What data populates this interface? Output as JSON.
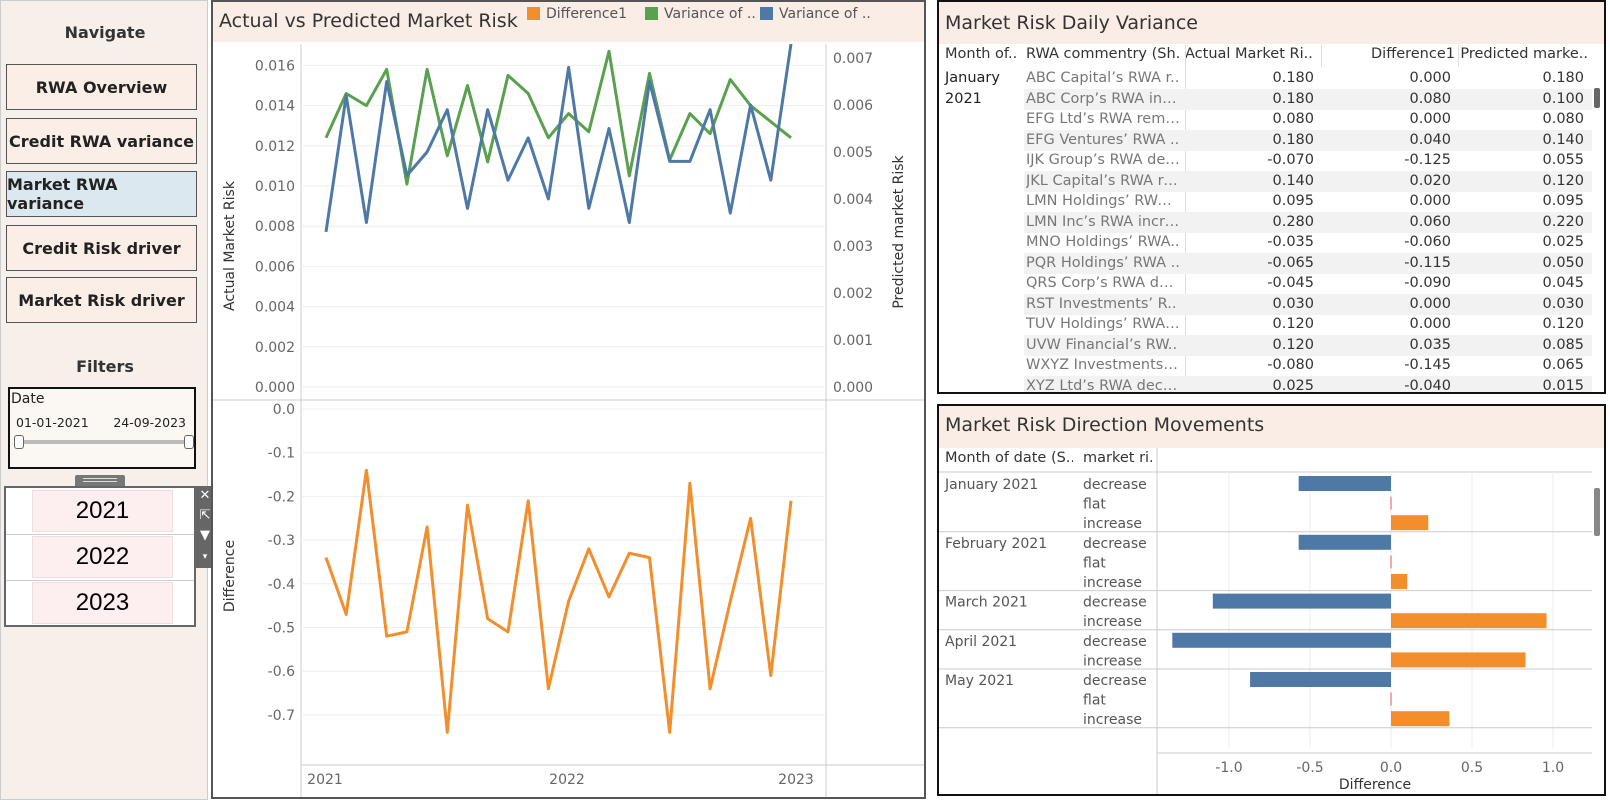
{
  "sidebar": {
    "navigate_label": "Navigate",
    "nav_items": [
      {
        "label": "RWA Overview",
        "active": false
      },
      {
        "label": "Credit RWA variance",
        "active": false
      },
      {
        "label": "Market RWA variance",
        "active": true
      },
      {
        "label": "Credit Risk driver",
        "active": false
      },
      {
        "label": "Market Risk driver",
        "active": false
      }
    ],
    "filters_label": "Filters",
    "date_filter": {
      "label": "Date",
      "start": "01-01-2021",
      "end": "24-09-2023"
    },
    "year_options": [
      "2021",
      "2022",
      "2023"
    ]
  },
  "line_panel": {
    "title": "Actual vs Predicted Market Risk",
    "legend": [
      {
        "label": "Difference1",
        "color": "#f28e2b"
      },
      {
        "label": "Variance of ..",
        "color": "#59a14f"
      },
      {
        "label": "Variance of ..",
        "color": "#4e79a7"
      }
    ],
    "top_left_axis_label": "Actual Market Risk",
    "top_right_axis_label": "Predicted market Risk",
    "bottom_axis_label": "Difference",
    "left_ticks": [
      "0.016",
      "0.014",
      "0.012",
      "0.010",
      "0.008",
      "0.006",
      "0.004",
      "0.002",
      "0.000"
    ],
    "right_ticks": [
      "0.007",
      "0.006",
      "0.005",
      "0.004",
      "0.003",
      "0.002",
      "0.001",
      "0.000"
    ],
    "bottom_ticks": [
      "0.0",
      "-0.1",
      "-0.2",
      "-0.3",
      "-0.4",
      "-0.5",
      "-0.6",
      "-0.7"
    ],
    "x_ticks": [
      "2021",
      "2022",
      "2023"
    ]
  },
  "chart_data": [
    {
      "type": "line",
      "x_label_ticks": [
        "2021",
        "2022",
        "2023"
      ],
      "series": [
        {
          "name": "Variance of ..",
          "color": "#59a14f",
          "axis": "left",
          "values": [
            0.0124,
            0.0146,
            0.014,
            0.0158,
            0.0101,
            0.0158,
            0.0115,
            0.015,
            0.0112,
            0.0155,
            0.0146,
            0.0124,
            0.0136,
            0.0127,
            0.0167,
            0.0105,
            0.0156,
            0.0113,
            0.0136,
            0.0126,
            0.0153,
            0.014,
            0.0132,
            0.0124
          ]
        },
        {
          "name": "Variance of ..",
          "color": "#4e79a7",
          "axis": "right",
          "values": [
            0.0033,
            0.0062,
            0.0035,
            0.0065,
            0.0045,
            0.005,
            0.0059,
            0.0038,
            0.0059,
            0.0044,
            0.0053,
            0.004,
            0.0068,
            0.0038,
            0.0055,
            0.0035,
            0.0065,
            0.0048,
            0.0048,
            0.0059,
            0.0037,
            0.006,
            0.0044,
            0.0073
          ]
        }
      ],
      "y_left_range": [
        0,
        0.0175
      ],
      "y_right_range": [
        0,
        0.0075
      ]
    },
    {
      "type": "line",
      "x_label_ticks": [
        "2021",
        "2022",
        "2023"
      ],
      "series": [
        {
          "name": "Difference1",
          "color": "#f28e2b",
          "values": [
            -0.34,
            -0.47,
            -0.14,
            -0.52,
            -0.51,
            -0.27,
            -0.74,
            -0.22,
            -0.48,
            -0.51,
            -0.21,
            -0.64,
            -0.44,
            -0.32,
            -0.43,
            -0.33,
            -0.34,
            -0.74,
            -0.17,
            -0.64,
            -0.44,
            -0.25,
            -0.61,
            -0.21
          ]
        }
      ],
      "y_range": [
        -0.79,
        0.0
      ]
    },
    {
      "type": "bar",
      "title": "Market Risk Direction Movements",
      "xlabel": "Difference",
      "x_ticks": [
        "-1.0",
        "-0.5",
        "0.0",
        "0.5",
        "1.0"
      ],
      "x_range": [
        -1.45,
        1.05
      ],
      "groups": [
        {
          "month": "January 2021",
          "rows": [
            {
              "dir": "decrease",
              "value": -0.57
            },
            {
              "dir": "flat",
              "value": 0.0
            },
            {
              "dir": "increase",
              "value": 0.23
            }
          ]
        },
        {
          "month": "February 2021",
          "rows": [
            {
              "dir": "decrease",
              "value": -0.57
            },
            {
              "dir": "flat",
              "value": 0.0
            },
            {
              "dir": "increase",
              "value": 0.1
            }
          ]
        },
        {
          "month": "March 2021",
          "rows": [
            {
              "dir": "decrease",
              "value": -1.1
            },
            {
              "dir": "increase",
              "value": 0.96
            }
          ]
        },
        {
          "month": "April 2021",
          "rows": [
            {
              "dir": "decrease",
              "value": -1.35
            },
            {
              "dir": "increase",
              "value": 0.83
            }
          ]
        },
        {
          "month": "May 2021",
          "rows": [
            {
              "dir": "decrease",
              "value": -0.87
            },
            {
              "dir": "flat",
              "value": 0.0
            },
            {
              "dir": "increase",
              "value": 0.36
            }
          ]
        }
      ]
    }
  ],
  "table_panel": {
    "title": "Market Risk Daily Variance",
    "headers": [
      "Month of..",
      "RWA commentry (Sh..",
      "Actual Market Ri..",
      "Difference1",
      "Predicted marke.."
    ],
    "month": [
      "January",
      "2021"
    ],
    "rows": [
      [
        "ABC Capital’s RWA r..",
        "0.180",
        "0.000",
        "0.180"
      ],
      [
        "ABC Corp’s RWA incr..",
        "0.180",
        "0.080",
        "0.100"
      ],
      [
        "EFG Ltd’s RWA rema..",
        "0.080",
        "0.000",
        "0.080"
      ],
      [
        "EFG Ventures’ RWA ..",
        "0.180",
        "0.040",
        "0.140"
      ],
      [
        "IJK Group’s RWA dec..",
        "-0.070",
        "-0.125",
        "0.055"
      ],
      [
        "JKL Capital’s RWA re..",
        "0.140",
        "0.020",
        "0.120"
      ],
      [
        "LMN Holdings’ RWA ..",
        "0.095",
        "0.000",
        "0.095"
      ],
      [
        "LMN Inc’s RWA incre..",
        "0.280",
        "0.060",
        "0.220"
      ],
      [
        "MNO Holdings’ RWA..",
        "-0.035",
        "-0.060",
        "0.025"
      ],
      [
        "PQR Holdings’ RWA ..",
        "-0.065",
        "-0.115",
        "0.050"
      ],
      [
        "QRS Corp’s RWA dec..",
        "-0.045",
        "-0.090",
        "0.045"
      ],
      [
        "RST Investments’ R..",
        "0.030",
        "0.000",
        "0.030"
      ],
      [
        "TUV Holdings’ RWA i..",
        "0.120",
        "0.000",
        "0.120"
      ],
      [
        "UVW Financial’s RW..",
        "0.120",
        "0.035",
        "0.085"
      ],
      [
        "WXYZ Investments’ ..",
        "-0.080",
        "-0.145",
        "0.065"
      ],
      [
        "XYZ Ltd’s RWA decre..",
        "0.025",
        "-0.040",
        "0.015"
      ]
    ]
  },
  "bar_panel": {
    "title": "Market Risk Direction Movements",
    "headers": [
      "Month of date (S..",
      "market ri.."
    ]
  },
  "colors": {
    "orange": "#f28e2b",
    "green": "#59a14f",
    "blue": "#4e79a7",
    "sidebar_bg": "#f6efea",
    "header_bg": "#faede6"
  }
}
